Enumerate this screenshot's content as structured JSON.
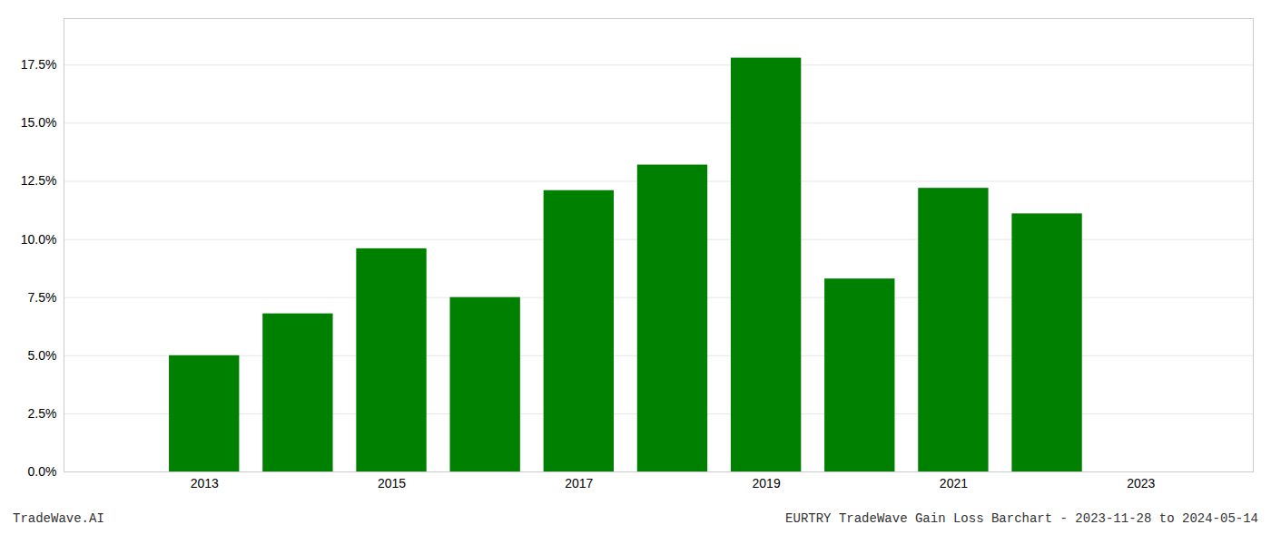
{
  "chart_data": {
    "type": "bar",
    "x": [
      2013,
      2014,
      2015,
      2016,
      2017,
      2018,
      2019,
      2020,
      2021,
      2022
    ],
    "values": [
      0.05,
      0.068,
      0.096,
      0.075,
      0.121,
      0.132,
      0.178,
      0.083,
      0.122,
      0.111
    ],
    "color": "#008000",
    "xlim": [
      2011.5,
      2024.2
    ],
    "xticks": [
      2013,
      2015,
      2017,
      2019,
      2021,
      2023
    ],
    "ylim": [
      0,
      0.195
    ],
    "yticks": [
      {
        "value": 0.0,
        "label": "0.0%"
      },
      {
        "value": 0.025,
        "label": "2.5%"
      },
      {
        "value": 0.05,
        "label": "5.0%"
      },
      {
        "value": 0.075,
        "label": "7.5%"
      },
      {
        "value": 0.1,
        "label": "10.0%"
      },
      {
        "value": 0.125,
        "label": "12.5%"
      },
      {
        "value": 0.15,
        "label": "15.0%"
      },
      {
        "value": 0.175,
        "label": "17.5%"
      }
    ],
    "grid": true,
    "annotations": [
      "TradeWave.AI",
      "EURTRY TradeWave Gain Loss Barchart - 2023-11-28 to 2024-05-14"
    ]
  }
}
